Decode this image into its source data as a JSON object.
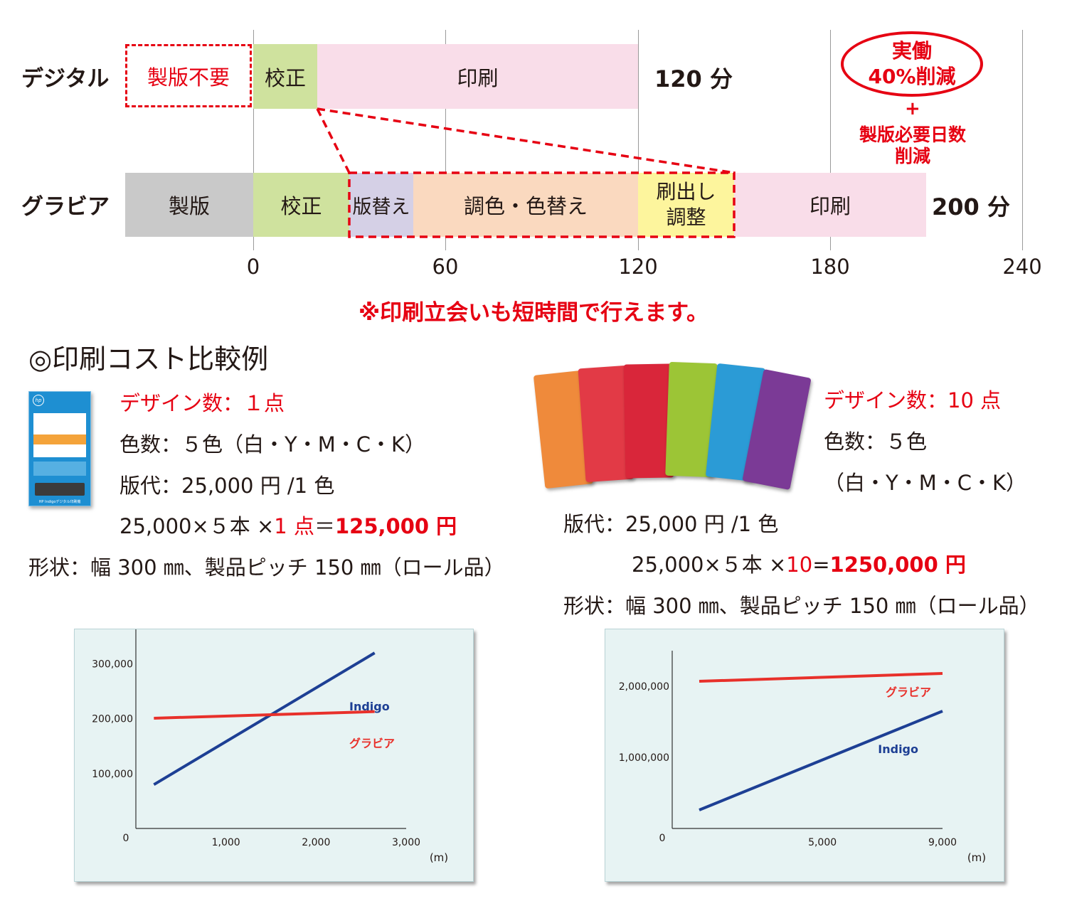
{
  "timeline": {
    "rows": [
      {
        "label": "デジタル",
        "total": "120 分"
      },
      {
        "label": "グラビア",
        "total": "200 分"
      }
    ],
    "ticks": [
      "0",
      "60",
      "120",
      "180",
      "240"
    ],
    "digital": {
      "no_plate": "製版不要",
      "proof": "校正",
      "print": "印刷"
    },
    "gravure": {
      "plate": "製版",
      "proof": "校正",
      "plate_change": "版替え",
      "color": "調色・色替え",
      "startup_line1": "刷出し",
      "startup_line2": "調整",
      "print": "印刷"
    },
    "badge": {
      "line1": "実働",
      "line2": "40%削減"
    },
    "plus": "+",
    "plus_line1": "製版必要日数",
    "plus_line2": "削減",
    "note": "※印刷立会いも短時間で行えます。"
  },
  "section_title": "◎印刷コスト比較例",
  "left_case": {
    "design_count": "デザイン数：１点",
    "colors": "色数：５色（白・Y・M・C・K）",
    "plate_cost": "版代：25,000 円 /1 色",
    "calc_prefix": "25,000×５本 ×",
    "calc_mid": "1 点",
    "calc_eq": "＝",
    "calc_total": "125,000 円",
    "shape": "形状：幅 300 ㎜、製品ピッチ 150 ㎜（ロール品）"
  },
  "right_case": {
    "design_count": "デザイン数：10 点",
    "colors": "色数：５色",
    "colors_detail": "（白・Y・M・C・K）",
    "plate_cost": "版代：25,000 円 /1 色",
    "calc_prefix": "25,000×５本 ×",
    "calc_mid": "10",
    "calc_eq": "=",
    "calc_total": "1250,000 円",
    "shape": "形状：幅 300 ㎜、製品ピッチ 150 ㎜（ロール品）"
  },
  "brochure": {
    "logo": "hp",
    "footer": "HP Indigoデジタル印刷機"
  },
  "colors": {
    "red": "#e60012",
    "indigo_line": "#1d3f94",
    "gravure_line": "#e8302a",
    "proof_green": "#cfe29e",
    "print_pink": "#f9dde9",
    "plate_gray": "#c9c9c9",
    "change_lavender": "#d5d0e6",
    "color_orange": "#fad9bf",
    "startup_yellow": "#fdf59d",
    "panel_bg": "#e7f3f3"
  },
  "chart_data": [
    {
      "type": "line",
      "x_unit": "(m)",
      "x_ticks": [
        "0",
        "1,000",
        "2,000",
        "3,000"
      ],
      "y_ticks": [
        "100,000",
        "200,000",
        "300,000"
      ],
      "xlim": [
        0,
        3000
      ],
      "ylim": [
        0,
        350000
      ],
      "series": [
        {
          "name": "Indigo",
          "color": "#1d3f94",
          "x": [
            200,
            2650
          ],
          "y": [
            80000,
            320000
          ]
        },
        {
          "name": "グラビア",
          "color": "#e8302a",
          "x": [
            200,
            2650
          ],
          "y": [
            201000,
            213000
          ]
        }
      ]
    },
    {
      "type": "line",
      "x_unit": "(m)",
      "x_ticks": [
        "0",
        "5,000",
        "9,000"
      ],
      "y_ticks": [
        "1,000,000",
        "2,000,000"
      ],
      "xlim": [
        0,
        9000
      ],
      "ylim": [
        0,
        2400000
      ],
      "series": [
        {
          "name": "グラビア",
          "color": "#e8302a",
          "x": [
            900,
            9000
          ],
          "y": [
            2070000,
            2180000
          ]
        },
        {
          "name": "Indigo",
          "color": "#1d3f94",
          "x": [
            900,
            9000
          ],
          "y": [
            260000,
            1650000
          ]
        }
      ]
    }
  ]
}
